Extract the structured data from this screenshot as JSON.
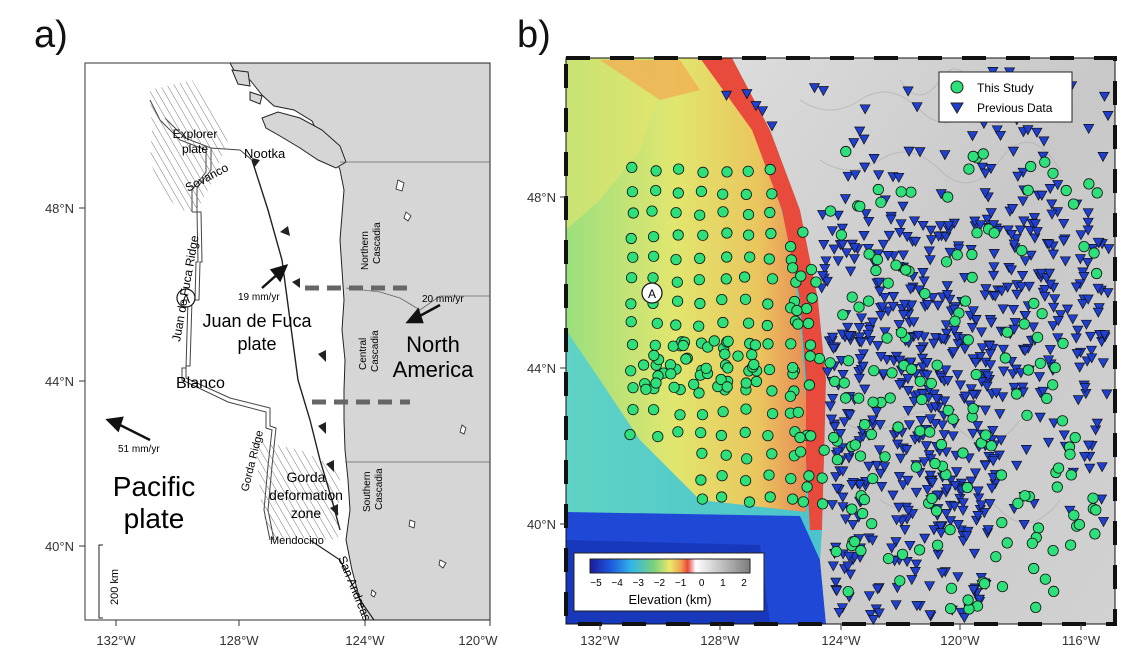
{
  "panel_a": {
    "letter": "a)",
    "x_ticks": [
      "132°W",
      "128°W",
      "124°W",
      "120°W"
    ],
    "y_ticks": [
      "48°N",
      "44°N",
      "40°N"
    ],
    "labels": {
      "explorer": [
        "Explorer",
        "plate"
      ],
      "sovanco": "Sovanco",
      "nootka": "Nootka",
      "jdf_ridge": "Juan de Fuca Ridge",
      "marker": "A",
      "rate_jdf": "19 mm/yr",
      "rate_na": "20 mm/yr",
      "jdf_plate": [
        "Juan de Fuca",
        "plate"
      ],
      "north_america": [
        "North",
        "America"
      ],
      "northern_cascadia": [
        "Northern",
        "Cascadia"
      ],
      "central_cascadia": [
        "Central",
        "Cascadia"
      ],
      "southern_cascadia": [
        "Southern",
        "Cascadia"
      ],
      "blanco": "Blanco",
      "rate_pacific": "51 mm/yr",
      "pacific_plate": [
        "Pacific",
        "plate"
      ],
      "gorda_ridge": "Gorda Ridge",
      "gorda_zone": [
        "Gorda",
        "deformation",
        "zone"
      ],
      "mendocino": "Mendocino",
      "san_andreas": "San Andreas",
      "scale": "200 km"
    }
  },
  "panel_b": {
    "letter": "b)",
    "x_ticks": [
      "132°W",
      "128°W",
      "124°W",
      "120°W",
      "116°W"
    ],
    "y_ticks": [
      "48°N",
      "44°N",
      "40°N"
    ],
    "marker": "A",
    "legend": {
      "this_study": "This Study",
      "previous": "Previous Data"
    },
    "colorbar": {
      "title": "Elevation (km)",
      "ticks": [
        "−5",
        "−4",
        "−3",
        "−2",
        "−1",
        "0",
        "1",
        "2"
      ]
    },
    "colors": {
      "this_study": "#2ee07a",
      "previous": "#1f3fd1"
    }
  }
}
